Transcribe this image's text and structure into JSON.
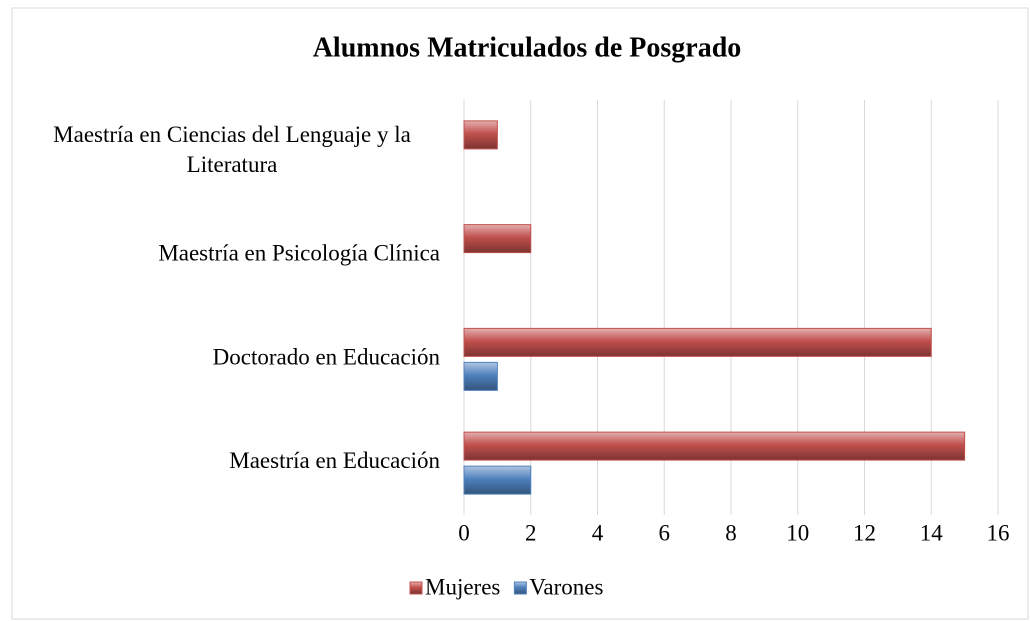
{
  "chart_data": {
    "type": "bar",
    "orientation": "horizontal",
    "title": "Alumnos Matriculados de Posgrado",
    "categories": [
      "Maestría en Ciencias del Lenguaje y la Literatura",
      "Maestría en Psicología Clínica",
      "Doctorado en Educación",
      "Maestría en Educación"
    ],
    "series": [
      {
        "name": "Mujeres",
        "color": "#c0504d",
        "values": [
          1,
          2,
          14,
          15
        ]
      },
      {
        "name": "Varones",
        "color": "#4f81bd",
        "values": [
          0,
          0,
          1,
          2
        ]
      }
    ],
    "xlim": [
      0,
      16
    ],
    "xticks": [
      0,
      2,
      4,
      6,
      8,
      10,
      12,
      14,
      16
    ],
    "grid": true,
    "legend": "bottom"
  }
}
